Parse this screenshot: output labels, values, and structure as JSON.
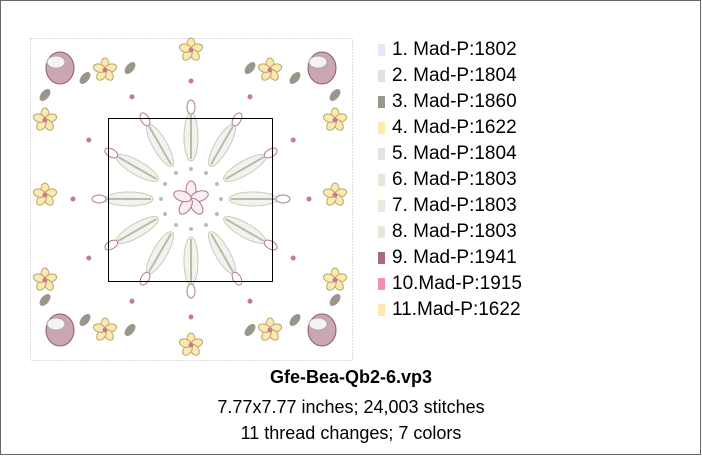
{
  "design": {
    "threads": [
      {
        "label": "1.  Mad-P:1802",
        "color": "#e3e8f6"
      },
      {
        "label": "2.  Mad-P:1804",
        "color": "#e2e2dd"
      },
      {
        "label": "3.  Mad-P:1860",
        "color": "#9b968b"
      },
      {
        "label": "4.  Mad-P:1622",
        "color": "#fbe9b0"
      },
      {
        "label": "5.  Mad-P:1804",
        "color": "#e2e2e2"
      },
      {
        "label": "6.  Mad-P:1803",
        "color": "#e8e6d8"
      },
      {
        "label": "7.  Mad-P:1803",
        "color": "#eceadf"
      },
      {
        "label": "8.  Mad-P:1803",
        "color": "#e5e7da"
      },
      {
        "label": "9.  Mad-P:1941",
        "color": "#a86b7a"
      },
      {
        "label": "10.Mad-P:1915",
        "color": "#f28dab"
      },
      {
        "label": "11.Mad-P:1622",
        "color": "#fbe9b0"
      }
    ],
    "filename": "Gfe-Bea-Qb2-6.vp3",
    "size_info": "7.77x7.77 inches; 24,003 stitches",
    "change_info": "11 thread changes; 7 colors"
  }
}
